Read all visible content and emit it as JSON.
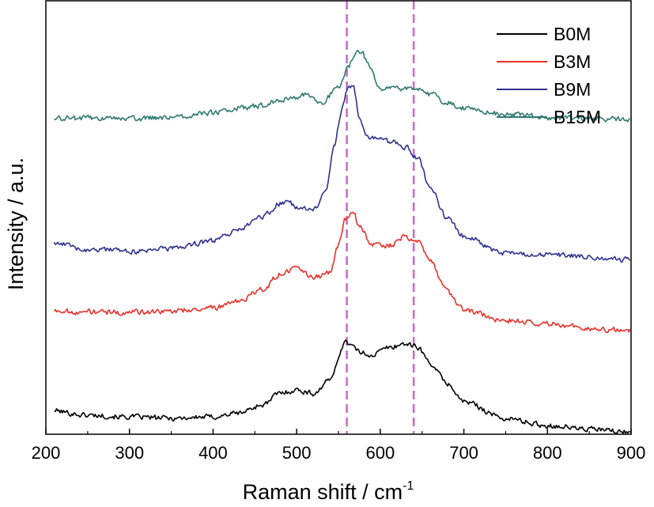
{
  "chart_data": {
    "type": "line",
    "title": "",
    "xlabel": "Raman shift / cm",
    "xlabel_superscript": "-1",
    "ylabel": "Intensity / a.u.",
    "xlim": [
      200,
      900
    ],
    "ylim": [
      0,
      100
    ],
    "x_ticks": [
      200,
      300,
      400,
      500,
      600,
      700,
      800,
      900
    ],
    "y_ticks_labeled": false,
    "grid": false,
    "legend_position": "top-right",
    "reference_lines": [
      {
        "x": 560,
        "color": "#c86ec8",
        "style": "dashed"
      },
      {
        "x": 640,
        "color": "#c86ec8",
        "style": "dashed"
      }
    ],
    "series": [
      {
        "name": "B0M",
        "color": "#000000",
        "x": [
          200,
          250,
          300,
          350,
          400,
          430,
          460,
          480,
          500,
          520,
          540,
          550,
          558,
          565,
          575,
          590,
          610,
          630,
          645,
          660,
          680,
          700,
          750,
          800,
          850,
          900
        ],
        "y": [
          5.6,
          4.4,
          4.0,
          3.7,
          4.0,
          4.9,
          6.8,
          9.5,
          10.2,
          9.4,
          12.5,
          17.5,
          21.8,
          20.6,
          18.9,
          18.3,
          20.0,
          20.9,
          20.1,
          16.3,
          11.7,
          7.5,
          3.6,
          2.0,
          1.2,
          0.4
        ]
      },
      {
        "name": "B3M",
        "color": "#e8312b",
        "x": [
          200,
          250,
          300,
          350,
          400,
          430,
          460,
          480,
          500,
          520,
          540,
          550,
          558,
          567,
          575,
          590,
          610,
          630,
          645,
          660,
          680,
          700,
          750,
          800,
          850,
          900
        ],
        "y": [
          28.6,
          28.2,
          28.1,
          28.4,
          29.2,
          30.6,
          33.5,
          37.0,
          38.1,
          36.2,
          37.2,
          43.5,
          49.5,
          51.8,
          47.8,
          43.9,
          43.5,
          45.6,
          44.5,
          39.8,
          32.9,
          28.7,
          26.2,
          25.6,
          24.4,
          24.0
        ]
      },
      {
        "name": "B9M",
        "color": "#2f3190",
        "x": [
          200,
          250,
          300,
          350,
          400,
          430,
          460,
          480,
          490,
          500,
          520,
          535,
          545,
          555,
          562,
          568,
          575,
          585,
          600,
          615,
          630,
          645,
          660,
          680,
          700,
          750,
          800,
          850,
          900
        ],
        "y": [
          44.6,
          42.6,
          42.2,
          42.8,
          44.6,
          47.0,
          50.3,
          53.2,
          53.5,
          52.5,
          51.6,
          56.5,
          66.8,
          75.8,
          80.4,
          80.2,
          72.5,
          68.5,
          67.8,
          67.4,
          66.2,
          63.8,
          56.5,
          49.8,
          45.7,
          41.7,
          41.4,
          40.9,
          40.3
        ]
      },
      {
        "name": "B15M",
        "color": "#2f7a6e",
        "x": [
          200,
          250,
          300,
          350,
          400,
          430,
          460,
          480,
          500,
          510,
          530,
          550,
          562,
          570,
          578,
          585,
          600,
          620,
          640,
          660,
          680,
          700,
          750,
          800,
          850,
          900
        ],
        "y": [
          72.8,
          72.9,
          72.8,
          73.1,
          74.2,
          75.3,
          75.8,
          77.0,
          77.6,
          78.4,
          76.6,
          80.0,
          85.1,
          87.9,
          88.3,
          85.4,
          79.5,
          79.7,
          79.8,
          78.5,
          76.4,
          75.2,
          73.8,
          73.1,
          72.9,
          72.6
        ]
      }
    ]
  }
}
